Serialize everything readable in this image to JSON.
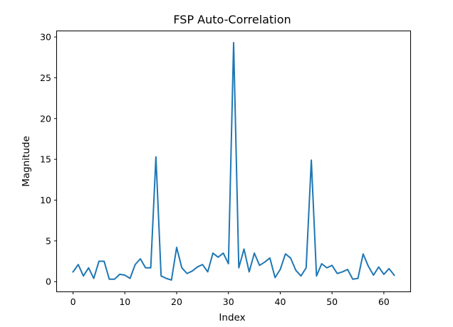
{
  "chart_data": {
    "type": "line",
    "title": "FSP Auto-Correlation",
    "xlabel": "Index",
    "ylabel": "Magnitude",
    "xlim": [
      -3.1,
      65.1
    ],
    "ylim": [
      -1.2,
      30.7
    ],
    "xticks": [
      0,
      10,
      20,
      30,
      40,
      50,
      60
    ],
    "yticks": [
      0,
      5,
      10,
      15,
      20,
      25,
      30
    ],
    "grid": false,
    "series": [
      {
        "color": "#1f77b4",
        "x": [
          0,
          1,
          2,
          3,
          4,
          5,
          6,
          7,
          8,
          9,
          10,
          11,
          12,
          13,
          14,
          15,
          16,
          17,
          18,
          19,
          20,
          21,
          22,
          23,
          24,
          25,
          26,
          27,
          28,
          29,
          30,
          31,
          32,
          33,
          34,
          35,
          36,
          37,
          38,
          39,
          40,
          41,
          42,
          43,
          44,
          45,
          46,
          47,
          48,
          49,
          50,
          51,
          52,
          53,
          54,
          55,
          56,
          57,
          58,
          59,
          60,
          61,
          62
        ],
        "values": [
          1.2,
          2.1,
          0.7,
          1.7,
          0.4,
          2.5,
          2.5,
          0.3,
          0.3,
          0.9,
          0.8,
          0.4,
          2.1,
          2.8,
          1.7,
          1.7,
          15.3,
          0.7,
          0.4,
          0.2,
          4.2,
          1.7,
          1.0,
          1.3,
          1.8,
          2.1,
          1.2,
          3.5,
          3.0,
          3.5,
          2.2,
          29.3,
          1.7,
          4.0,
          1.2,
          3.5,
          2.0,
          2.4,
          2.9,
          0.5,
          1.5,
          3.4,
          2.9,
          1.4,
          0.7,
          1.7,
          14.9,
          0.7,
          2.2,
          1.7,
          2.0,
          1.0,
          1.2,
          1.5,
          0.3,
          0.4,
          3.4,
          1.9,
          0.8,
          1.8,
          0.9,
          1.6,
          0.8
        ]
      }
    ]
  }
}
